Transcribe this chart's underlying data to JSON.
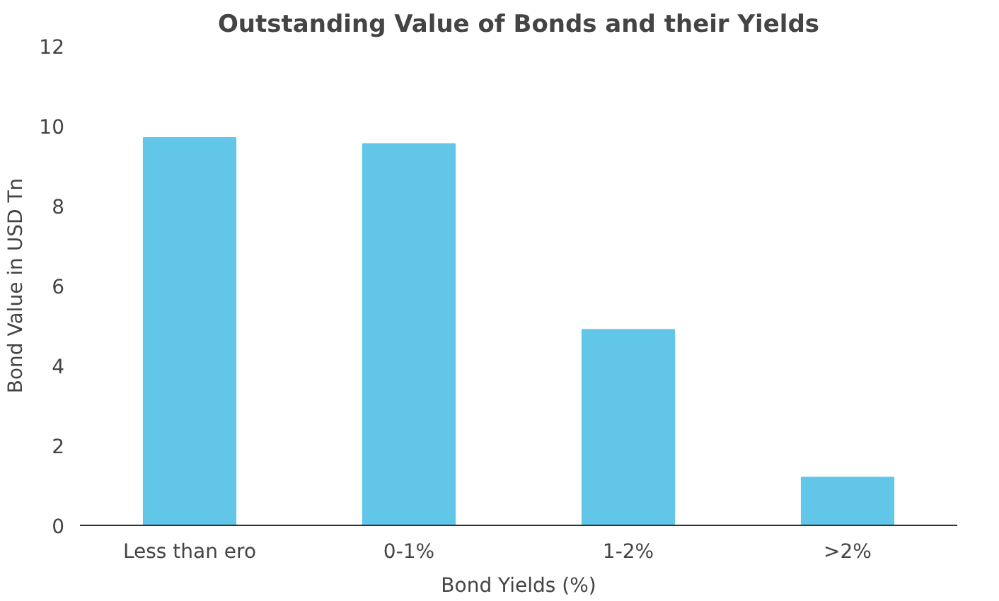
{
  "chart_data": {
    "type": "bar",
    "title": "Outstanding Value of Bonds and their Yields",
    "xlabel": "Bond Yields (%)",
    "ylabel": "Bond Value in USD Tn",
    "categories": [
      "Less than ero",
      "0-1%",
      "1-2%",
      ">2%"
    ],
    "values": [
      9.7,
      9.55,
      4.9,
      1.2
    ],
    "color": "#62c6e8",
    "ylim": [
      0,
      12
    ],
    "yticks": [
      0,
      2,
      4,
      6,
      8,
      10,
      12
    ],
    "grid": false
  }
}
